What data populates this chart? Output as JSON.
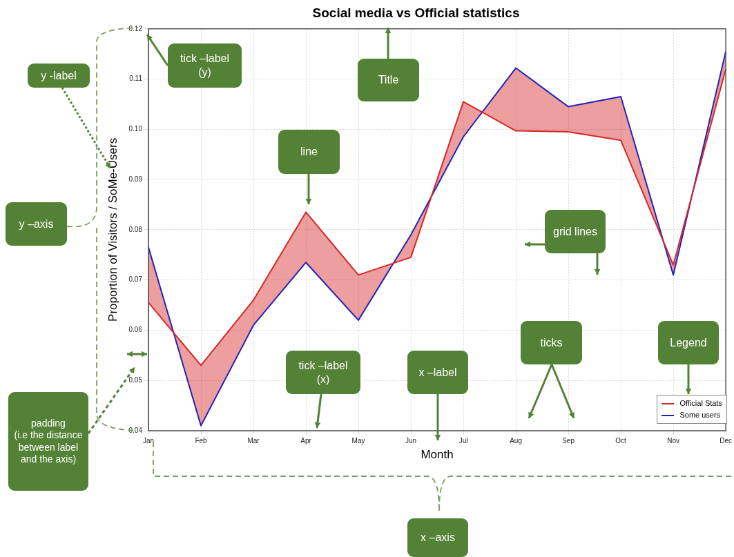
{
  "chart_data": {
    "type": "line",
    "title": "Social media vs Official statistics",
    "xlabel": "Month",
    "ylabel": "Proportion of Visitors / SoMe-Users",
    "categories": [
      "Jan",
      "Feb",
      "Mar",
      "Apr",
      "May",
      "Jun",
      "Jul",
      "Aug",
      "Sep",
      "Oct",
      "Nov",
      "Dec"
    ],
    "series": [
      {
        "name": "Official Stats",
        "color": "#d62728",
        "values": [
          0.0655,
          0.053,
          0.066,
          0.0835,
          0.071,
          0.0745,
          0.1055,
          0.0997,
          0.0995,
          0.0978,
          0.073,
          0.112
        ],
        "lower": [
          0.0765,
          0.041,
          0.061,
          0.0735,
          0.062,
          0.079,
          0.0985,
          0.1122,
          0.1045,
          0.1065,
          0.071,
          0.1155
        ],
        "upper": [
          0.0655,
          0.053,
          0.066,
          0.0835,
          0.071,
          0.0745,
          0.1055,
          0.0997,
          0.0995,
          0.0978,
          0.073,
          0.112
        ]
      },
      {
        "name": "Some users",
        "color": "#2222bb",
        "values": [
          0.0765,
          0.041,
          0.061,
          0.0735,
          0.062,
          0.079,
          0.0985,
          0.1122,
          0.1045,
          0.1065,
          0.071,
          0.1155
        ]
      }
    ],
    "ylim": [
      0.04,
      0.12
    ],
    "yticks": [
      0.04,
      0.05,
      0.06,
      0.07,
      0.08,
      0.09,
      {
        "value": 0.1,
        "label": "0.10"
      },
      0.11,
      0.12
    ],
    "grid": true,
    "legend": "bottom right",
    "marker": "none",
    "line_style": "solid",
    "annotations": [
      "tick –label\n(y)",
      "Title",
      "line",
      "y -label",
      "y –axis",
      "grid lines",
      "padding\n(i.e the distance between label and the axis)",
      "tick –label\n(x)",
      "x –label",
      "ticks",
      "Legend",
      "x –axis"
    ]
  }
}
